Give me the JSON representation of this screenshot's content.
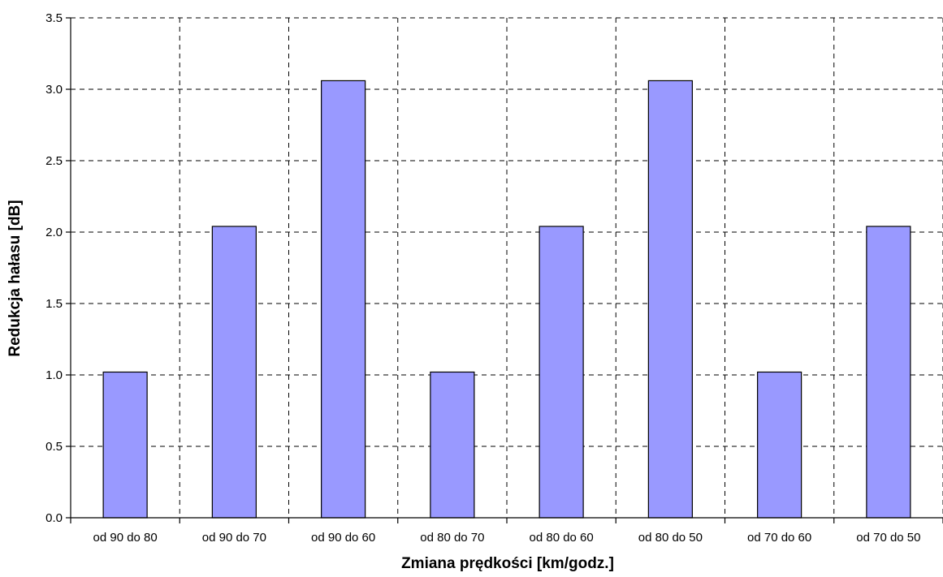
{
  "chart_data": {
    "type": "bar",
    "categories": [
      "od 90 do 80",
      "od 90 do 70",
      "od 90 do 60",
      "od 80 do 70",
      "od 80 do 60",
      "od 80 do 50",
      "od 70 do 60",
      "od 70 do 50"
    ],
    "values": [
      1.02,
      2.04,
      3.06,
      1.02,
      2.04,
      3.06,
      1.02,
      2.04
    ],
    "xlabel": "Zmiana prędkości [km/godz.]",
    "ylabel": "Redukcja hałasu [dB]",
    "ylim": [
      0,
      3.5
    ],
    "yticks": [
      "0.0",
      "0.5",
      "1.0",
      "1.5",
      "2.0",
      "2.5",
      "3.0",
      "3.5"
    ],
    "grid": true,
    "legend": "none",
    "bar_color": "#9999ff"
  }
}
